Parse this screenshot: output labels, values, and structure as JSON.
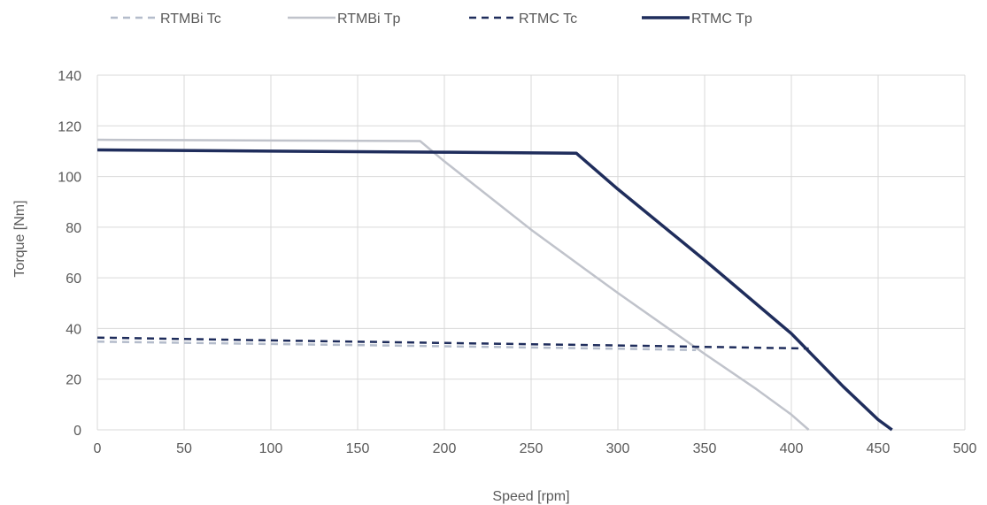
{
  "chart_data": {
    "type": "line",
    "xlabel": "Speed [rpm]",
    "ylabel": "Torque [Nm]",
    "xlim": [
      0,
      500
    ],
    "ylim": [
      0,
      140
    ],
    "xticks": [
      "0",
      "50",
      "100",
      "150",
      "200",
      "250",
      "300",
      "350",
      "400",
      "450",
      "500"
    ],
    "yticks": [
      "0",
      "20",
      "40",
      "60",
      "80",
      "100",
      "120",
      "140"
    ],
    "grid": true,
    "legend_position": "top",
    "series": [
      {
        "name": "RTMBi Tc",
        "color": "#b4bccb",
        "dash": "dashed",
        "weight": "thin",
        "x": [
          0,
          100,
          200,
          300,
          345
        ],
        "y": [
          34.8,
          33.9,
          33.0,
          32.0,
          31.5
        ]
      },
      {
        "name": "RTMBi Tp",
        "color": "#c0c3cb",
        "dash": "solid",
        "weight": "thin",
        "x": [
          0,
          100,
          186,
          200,
          250,
          280,
          300,
          350,
          380,
          400,
          410
        ],
        "y": [
          114.5,
          114.2,
          114.0,
          106,
          79,
          64,
          54,
          30,
          16,
          6,
          0
        ]
      },
      {
        "name": "RTMC Tc",
        "color": "#1f2d5c",
        "dash": "dashed",
        "weight": "thin",
        "x": [
          0,
          100,
          200,
          300,
          410
        ],
        "y": [
          36.4,
          35.3,
          34.3,
          33.3,
          32.1
        ]
      },
      {
        "name": "RTMC Tp",
        "color": "#1f2d5c",
        "dash": "solid",
        "weight": "thick",
        "x": [
          0,
          100,
          200,
          276,
          300,
          350,
          400,
          430,
          450,
          458
        ],
        "y": [
          110.5,
          110.0,
          109.6,
          109.2,
          95,
          67,
          38,
          17,
          4,
          0
        ]
      }
    ]
  }
}
